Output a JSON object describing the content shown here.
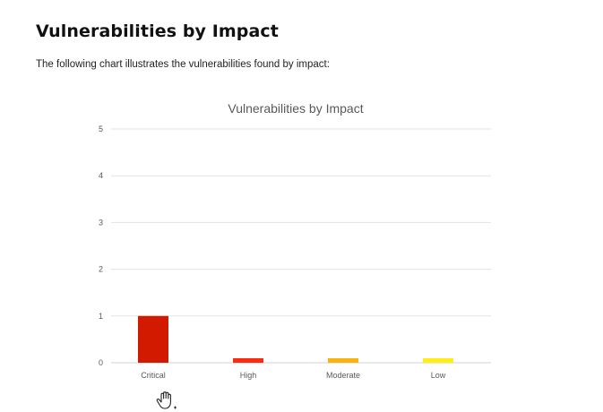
{
  "section": {
    "heading": "Vulnerabilities by Impact",
    "intro": "The following chart illustrates the vulnerabilities found by impact:"
  },
  "chart_data": {
    "type": "bar",
    "title": "Vulnerabilities by Impact",
    "categories": [
      "Critical",
      "High",
      "Moderate",
      "Low"
    ],
    "values": [
      1,
      0,
      0,
      0
    ],
    "colors": [
      "#d21a00",
      "#ff2a0d",
      "#f9b20e",
      "#ffee0f"
    ],
    "ylim": [
      0,
      5
    ],
    "yticks": [
      0,
      1,
      2,
      3,
      4,
      5
    ],
    "grid": true,
    "xlabel": "",
    "ylabel": ""
  },
  "cursor": {
    "icon": "hand-pointer-icon"
  }
}
